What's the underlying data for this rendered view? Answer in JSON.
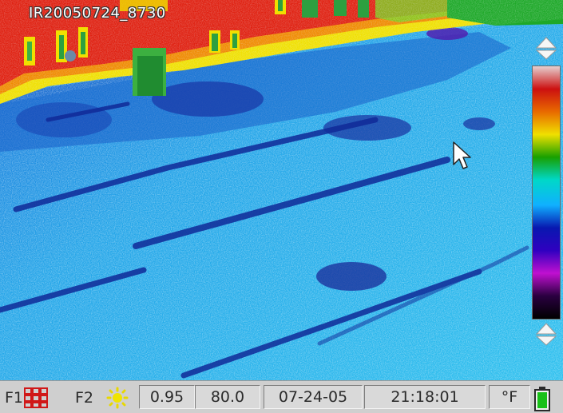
{
  "viewport": {
    "image_label": "IR20050724_8730"
  },
  "palette": {
    "stops": [
      "#e6cfcf",
      "#cc1010",
      "#e86a00",
      "#f0e000",
      "#18a000",
      "#00d8c8",
      "#10b0ff",
      "#0818b0",
      "#3000c0",
      "#c010d0",
      "#2a0040",
      "#000000"
    ]
  },
  "status_bar": {
    "f1_label": "F1",
    "f2_label": "F2",
    "emissivity": "0.95",
    "reflected_temp": "80.0",
    "date": "07-24-05",
    "time": "21:18:01",
    "unit": "°F"
  },
  "icons": {
    "f1": "grid-icon",
    "f2": "sun-icon",
    "battery": "battery-icon",
    "cursor": "cursor-arrow-icon"
  }
}
